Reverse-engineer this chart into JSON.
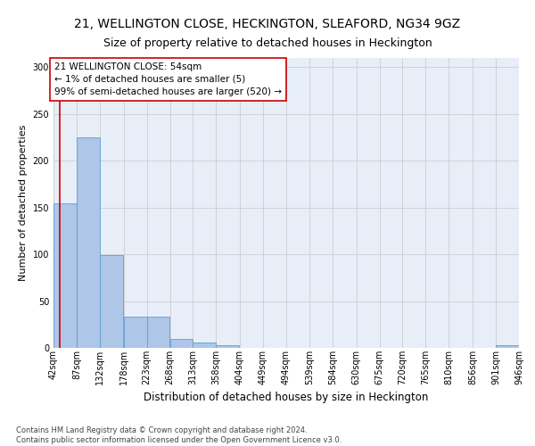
{
  "title1": "21, WELLINGTON CLOSE, HECKINGTON, SLEAFORD, NG34 9GZ",
  "title2": "Size of property relative to detached houses in Heckington",
  "xlabel": "Distribution of detached houses by size in Heckington",
  "ylabel": "Number of detached properties",
  "bar_color": "#aec6e8",
  "bar_edge_color": "#5a9fd4",
  "annotation_line_color": "#cc0000",
  "annotation_box_color": "#cc0000",
  "annotation_text": "21 WELLINGTON CLOSE: 54sqm\n← 1% of detached houses are smaller (5)\n99% of semi-detached houses are larger (520) →",
  "property_size": 54,
  "bin_edges": [
    42,
    87,
    132,
    178,
    223,
    268,
    313,
    358,
    404,
    449,
    494,
    539,
    584,
    630,
    675,
    720,
    765,
    810,
    856,
    901,
    946
  ],
  "bar_heights": [
    155,
    225,
    99,
    33,
    33,
    10,
    6,
    3,
    0,
    0,
    0,
    0,
    0,
    0,
    0,
    0,
    0,
    0,
    0,
    3
  ],
  "ylim": [
    0,
    310
  ],
  "yticks": [
    0,
    50,
    100,
    150,
    200,
    250,
    300
  ],
  "grid_color": "#cccccc",
  "background_color": "#e8eef8",
  "footer_text": "Contains HM Land Registry data © Crown copyright and database right 2024.\nContains public sector information licensed under the Open Government Licence v3.0.",
  "title1_fontsize": 10,
  "title2_fontsize": 9,
  "xlabel_fontsize": 8.5,
  "ylabel_fontsize": 8,
  "tick_fontsize": 7,
  "annotation_fontsize": 7.5,
  "footer_fontsize": 6
}
